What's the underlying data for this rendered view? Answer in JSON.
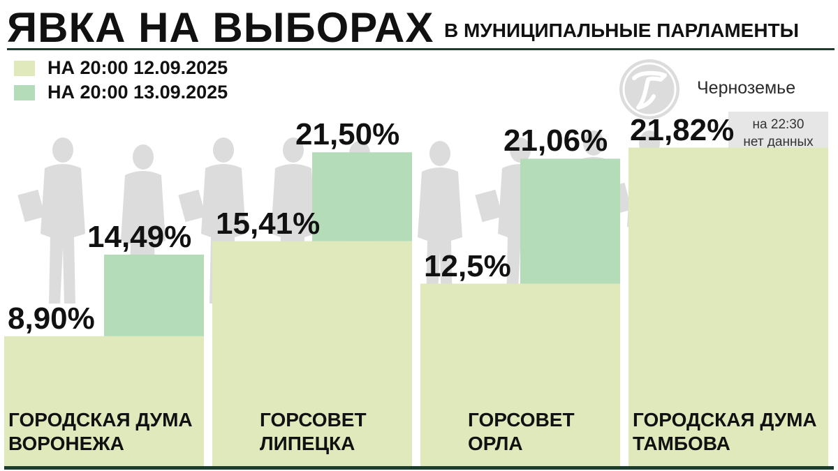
{
  "title": "ЯВКА НА ВЫБОРАХ",
  "subtitle": "В МУНИЦИПАЛЬНЫЕ ПАРЛАМЕНТЫ",
  "brand": "Черноземье",
  "legend": [
    {
      "label": "НА 20:00 12.09.2025",
      "color": "#dfe9bc"
    },
    {
      "label": "НА 20:00 13.09.2025",
      "color": "#b5dcb8"
    }
  ],
  "colors": {
    "day1": "#dfe9bc",
    "day2": "#b5dcb8",
    "nodata": "#e6e6e6",
    "rule": "#1c3d2c",
    "silhouette": "#dcdcdc"
  },
  "nodata_note": "на 22:30\nнет данных",
  "chart_data": {
    "type": "bar",
    "title": "ЯВКА НА ВЫБОРАХ",
    "subtitle": "В МУНИЦИПАЛЬНЫЕ ПАРЛАМЕНТЫ",
    "ylim": [
      0,
      25
    ],
    "unit": "%",
    "categories": [
      {
        "line1": "ГОРОДСКАЯ ДУМА",
        "line2": "ВОРОНЕЖА"
      },
      {
        "line1": "ГОРСОВЕТ",
        "line2": "ЛИПЕЦКА"
      },
      {
        "line1": "ГОРСОВЕТ",
        "line2": "ОРЛА"
      },
      {
        "line1": "ГОРОДСКАЯ ДУМА",
        "line2": "ТАМБОВА"
      }
    ],
    "series": [
      {
        "name": "НА 20:00 12.09.2025",
        "values": [
          8.9,
          15.41,
          12.5,
          21.82
        ],
        "labels": [
          "8,90%",
          "15,41%",
          "12,5%",
          "21,82%"
        ]
      },
      {
        "name": "НА 20:00 13.09.2025",
        "values": [
          14.49,
          21.5,
          21.06,
          null
        ],
        "labels": [
          "14,49%",
          "21,50%",
          "21,06%",
          ""
        ]
      }
    ]
  }
}
